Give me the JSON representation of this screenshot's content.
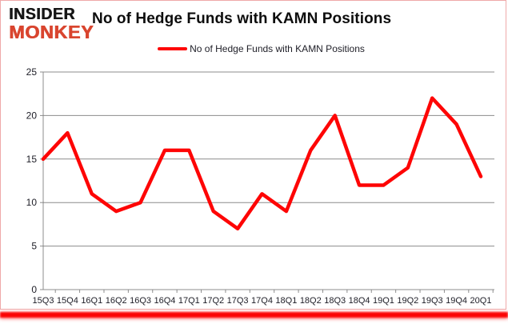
{
  "logo": {
    "line1": "INSIDER",
    "line2": "MONKEY"
  },
  "header": {
    "title": "No of Hedge Funds with KAMN Positions"
  },
  "legend": {
    "label": "No of Hedge Funds with KAMN Positions"
  },
  "chart_data": {
    "type": "line",
    "title": "No of Hedge Funds with KAMN Positions",
    "categories": [
      "15Q3",
      "15Q4",
      "16Q1",
      "16Q2",
      "16Q3",
      "16Q4",
      "17Q1",
      "17Q2",
      "17Q3",
      "17Q4",
      "18Q1",
      "18Q2",
      "18Q3",
      "18Q4",
      "19Q1",
      "19Q2",
      "19Q3",
      "19Q4",
      "20Q1"
    ],
    "series": [
      {
        "name": "No of Hedge Funds with KAMN Positions",
        "color": "#fe0505",
        "values": [
          15,
          18,
          11,
          9,
          10,
          16,
          16,
          9,
          7,
          11,
          9,
          16,
          20,
          12,
          12,
          14,
          22,
          19,
          13
        ]
      }
    ],
    "xlabel": "",
    "ylabel": "",
    "ylim": [
      0,
      25
    ],
    "yticks": [
      0,
      5,
      10,
      15,
      20,
      25
    ],
    "grid": true,
    "legend_position": "top-center"
  },
  "colors": {
    "line_red": "#fe0505",
    "logo_black": "#161616",
    "logo_red": "#d9452f",
    "gridline_gray": "#8c8c8c",
    "axis_text": "#1d1d26",
    "frame_border_pink": "#efa9a9",
    "banner_red": "#fb0505"
  }
}
